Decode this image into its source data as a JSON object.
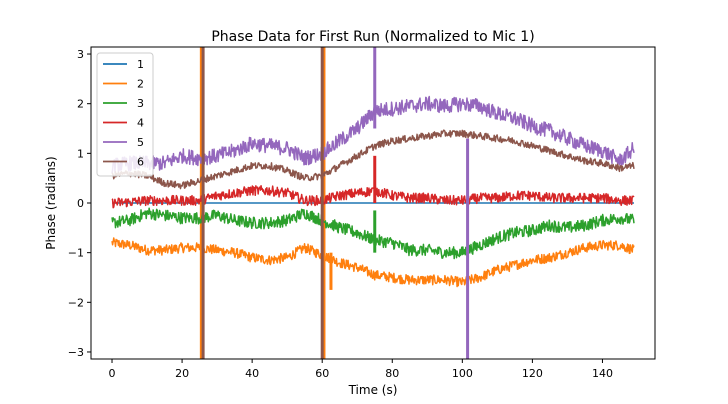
{
  "chart_data": {
    "type": "line",
    "title": "Phase Data for First Run (Normalized to Mic 1)",
    "xlabel": "Time (s)",
    "ylabel": "Phase (radians)",
    "xlim": [
      -6,
      155
    ],
    "ylim": [
      -3.14159,
      3.14159
    ],
    "xticks": [
      0,
      20,
      40,
      60,
      80,
      100,
      120,
      140
    ],
    "yticks": [
      -3,
      -2,
      -1,
      0,
      1,
      2,
      3
    ],
    "grid": false,
    "legend_position": "top-left",
    "series": [
      {
        "name": "1",
        "color": "#1f77b4",
        "x": [
          0,
          149
        ],
        "y": [
          0,
          0
        ],
        "noise": 0
      },
      {
        "name": "2",
        "color": "#ff7f0e",
        "x": [
          0,
          5,
          10,
          15,
          20,
          25,
          30,
          35,
          40,
          45,
          50,
          55,
          60,
          65,
          70,
          75,
          80,
          85,
          90,
          95,
          100,
          105,
          110,
          115,
          120,
          125,
          130,
          135,
          140,
          145,
          149
        ],
        "y": [
          -0.8,
          -0.85,
          -0.95,
          -0.95,
          -0.9,
          -0.9,
          -0.95,
          -1.0,
          -1.1,
          -1.15,
          -1.1,
          -0.9,
          -1.05,
          -1.2,
          -1.3,
          -1.45,
          -1.5,
          -1.55,
          -1.55,
          -1.55,
          -1.6,
          -1.5,
          -1.35,
          -1.25,
          -1.15,
          -1.1,
          -1.0,
          -0.9,
          -0.85,
          -0.85,
          -0.95
        ],
        "noise": 0.1,
        "spikes": [
          {
            "x": 25.5,
            "y0": -3.14,
            "y1": 3.14
          },
          {
            "x": 60.5,
            "y0": -3.14,
            "y1": 3.14
          },
          {
            "x": 62.5,
            "y0": -1.75,
            "y1": -1.0
          }
        ]
      },
      {
        "name": "3",
        "color": "#2ca02c",
        "x": [
          0,
          5,
          10,
          15,
          20,
          25,
          30,
          35,
          40,
          45,
          50,
          55,
          60,
          65,
          70,
          75,
          80,
          85,
          90,
          95,
          100,
          105,
          110,
          115,
          120,
          125,
          130,
          135,
          140,
          145,
          149
        ],
        "y": [
          -0.4,
          -0.35,
          -0.2,
          -0.25,
          -0.3,
          -0.3,
          -0.25,
          -0.35,
          -0.4,
          -0.4,
          -0.35,
          -0.2,
          -0.35,
          -0.5,
          -0.6,
          -0.75,
          -0.8,
          -0.95,
          -0.95,
          -1.0,
          -1.0,
          -0.85,
          -0.7,
          -0.6,
          -0.55,
          -0.45,
          -0.5,
          -0.45,
          -0.35,
          -0.3,
          -0.35
        ],
        "noise": 0.12,
        "spikes": [
          {
            "x": 75,
            "y0": -1.0,
            "y1": -0.15
          }
        ]
      },
      {
        "name": "4",
        "color": "#d62728",
        "x": [
          0,
          5,
          10,
          15,
          20,
          25,
          30,
          35,
          40,
          45,
          50,
          55,
          60,
          65,
          70,
          75,
          80,
          85,
          90,
          95,
          100,
          105,
          110,
          115,
          120,
          125,
          130,
          135,
          140,
          145,
          149
        ],
        "y": [
          0.0,
          0.02,
          0.05,
          0.05,
          0.05,
          0.05,
          0.15,
          0.2,
          0.25,
          0.25,
          0.2,
          0.05,
          0.05,
          0.15,
          0.2,
          0.25,
          0.15,
          0.1,
          0.1,
          0.05,
          0.05,
          0.1,
          0.1,
          0.15,
          0.15,
          0.1,
          0.1,
          0.1,
          0.1,
          0.05,
          0.05
        ],
        "noise": 0.1,
        "spikes": [
          {
            "x": 75,
            "y0": 0.0,
            "y1": 0.95
          }
        ]
      },
      {
        "name": "5",
        "color": "#9467bd",
        "x": [
          0,
          5,
          10,
          15,
          20,
          25,
          30,
          35,
          40,
          45,
          50,
          55,
          60,
          65,
          70,
          75,
          80,
          85,
          90,
          95,
          100,
          105,
          110,
          115,
          120,
          125,
          130,
          135,
          140,
          145,
          149
        ],
        "y": [
          0.75,
          0.8,
          0.8,
          0.8,
          0.95,
          0.9,
          0.95,
          1.05,
          1.2,
          1.15,
          1.1,
          0.9,
          1.0,
          1.25,
          1.5,
          1.85,
          1.9,
          1.95,
          2.0,
          1.95,
          2.0,
          1.95,
          1.8,
          1.7,
          1.55,
          1.45,
          1.3,
          1.15,
          1.05,
          0.85,
          1.1
        ],
        "noise": 0.15,
        "spikes": [
          {
            "x": 75,
            "y0": 1.5,
            "y1": 3.14
          },
          {
            "x": 101.5,
            "y0": -3.14,
            "y1": 1.3
          }
        ]
      },
      {
        "name": "6",
        "color": "#8c564b",
        "x": [
          0,
          5,
          10,
          15,
          20,
          25,
          30,
          35,
          40,
          45,
          50,
          55,
          60,
          65,
          70,
          75,
          80,
          85,
          90,
          95,
          100,
          105,
          110,
          115,
          120,
          125,
          130,
          135,
          140,
          145,
          149
        ],
        "y": [
          0.55,
          0.6,
          0.55,
          0.4,
          0.35,
          0.45,
          0.55,
          0.65,
          0.75,
          0.75,
          0.65,
          0.5,
          0.55,
          0.75,
          0.95,
          1.15,
          1.25,
          1.3,
          1.35,
          1.4,
          1.4,
          1.35,
          1.3,
          1.25,
          1.15,
          1.05,
          0.95,
          0.85,
          0.8,
          0.7,
          0.75
        ],
        "noise": 0.07,
        "spikes": [
          {
            "x": 26,
            "y0": -3.14,
            "y1": 3.14
          },
          {
            "x": 60,
            "y0": -3.14,
            "y1": 3.14
          }
        ]
      }
    ]
  }
}
